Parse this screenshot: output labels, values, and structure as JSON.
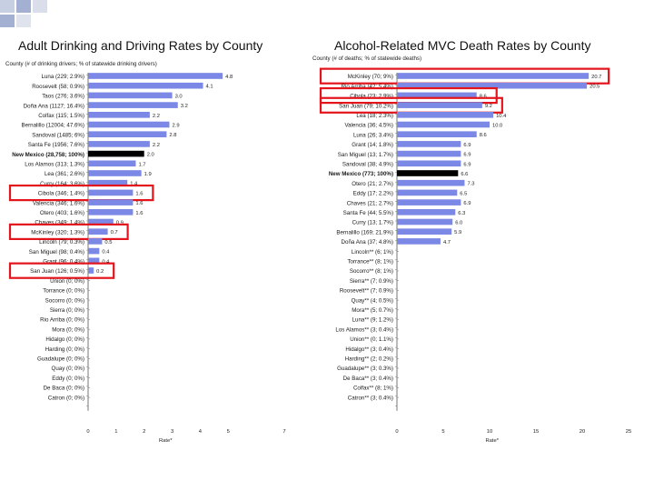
{
  "slide": {
    "title_left": "Adult Drinking and Driving Rates by County",
    "title_right": "Alcohol-Related MVC Death Rates by County",
    "accent_color": "#8ea0c8",
    "highlight_color": "#e3141c",
    "bar_color": "#7b88e6",
    "reference_bar_color": "#000000"
  },
  "chart_data": [
    {
      "type": "bar",
      "orientation": "horizontal",
      "title": "Adult Drinking and Driving Rates by County",
      "header": "County (# of drinking drivers; % of statewide drinking drivers)",
      "xlabel": "Rate*",
      "xlim": [
        0,
        7
      ],
      "xticks": [
        "0",
        "1",
        "2",
        "3",
        "4",
        "5",
        "7"
      ],
      "categories": [
        "Luna (229; 2.9%)",
        "Roosevelt (58; 0.9%)",
        "Taos (276; 3.6%)",
        "Doña Ana (1127; 16.4%)",
        "Colfax (115; 1.5%)",
        "Bernalillo (12004; 47.6%)",
        "Sandoval (1485; 6%)",
        "Santa Fe (1956; 7.6%)",
        "New Mexico (28,758; 100%)",
        "Los Alamos (313; 1.3%)",
        "Lea (361; 2.6%)",
        "Curry (164; 3.6%)",
        "Cibola (346; 1.4%)",
        "Valencia (346; 1.6%)",
        "Otero (403; 1.6%)",
        "Chaves (349; 1.4%)",
        "McKinley (320; 1.3%)",
        "Lincoln (79; 0.3%)",
        "San Miguel (98; 0.4%)",
        "Grant (96; 0.4%)",
        "San Juan (126; 0.5%)",
        "Union (0; 0%)",
        "Torrance (0; 0%)",
        "Socorro (0; 0%)",
        "Sierra (0; 0%)",
        "Rio Arriba (0; 0%)",
        "Mora (0; 0%)",
        "Hidalgo (0; 0%)",
        "Harding (0; 0%)",
        "Guadalupe (0; 0%)",
        "Quay (0; 0%)",
        "Eddy (0; 0%)",
        "De Baca (0; 0%)",
        "Catron (0; 0%)"
      ],
      "values": [
        4.8,
        4.1,
        3.0,
        3.2,
        2.2,
        2.9,
        2.8,
        2.2,
        2.0,
        1.7,
        1.9,
        1.4,
        1.6,
        1.6,
        1.6,
        0.9,
        0.7,
        0.5,
        0.4,
        0.4,
        0.2,
        0,
        0,
        0,
        0,
        0,
        0,
        0,
        0,
        0,
        0,
        0,
        0,
        0
      ],
      "value_labels": [
        "4.8",
        "4.1",
        "3.0",
        "3.2",
        "2.2",
        "2.9",
        "2.8",
        "2.2",
        "2.0",
        "1.7",
        "1.9",
        "1.4",
        "1.6",
        "1.6",
        "1.6",
        "0.9",
        "0.7",
        "0.5",
        "0.4",
        "0.4",
        "0.2",
        "",
        "",
        "",
        "",
        "",
        "",
        "",
        "",
        "",
        "",
        "",
        "",
        ""
      ],
      "reference_category": "New Mexico (28,758; 100%)",
      "highlighted": [
        "Cibola (346; 1.4%)",
        "McKinley (320; 1.3%)",
        "San Juan (126; 0.5%)"
      ]
    },
    {
      "type": "bar",
      "orientation": "horizontal",
      "title": "Alcohol-Related MVC Death Rates by County",
      "header": "County (# of deaths; % of statewide deaths)",
      "xlabel": "Rate*",
      "xlim": [
        0,
        25
      ],
      "xticks": [
        "0",
        "5",
        "10",
        "15",
        "20",
        "25"
      ],
      "categories": [
        "McKinley (70; 9%)",
        "Rio Arriba (42; 5.4%)",
        "Cibola (23; 2.9%)",
        "San Juan (79; 10.2%)",
        "Lea (18; 2.3%)",
        "Valencia (36; 4.5%)",
        "Luna (26; 3.4%)",
        "Grant (14; 1.8%)",
        "San Miguel (13; 1.7%)",
        "Sandoval (38; 4.9%)",
        "New Mexico (773; 100%)",
        "Otero (21; 2.7%)",
        "Eddy (17; 2.2%)",
        "Chaves (21; 2.7%)",
        "Santa Fe (44; 5.5%)",
        "Curry (13; 1.7%)",
        "Bernalillo (169; 21.9%)",
        "Doña Ana (37; 4.8%)",
        "Lincoln** (6; 1%)",
        "Torrance** (8; 1%)",
        "Socorro** (8; 1%)",
        "Sierra** (7; 0.9%)",
        "Roosevelt** (7; 0.9%)",
        "Quay** (4; 0.5%)",
        "Mora** (5; 0.7%)",
        "Luna** (9; 1.2%)",
        "Los Alamos** (3; 0.4%)",
        "Union** (0; 1.1%)",
        "Hidalgo** (3; 0.4%)",
        "Harding** (2; 0.2%)",
        "Guadalupe** (3; 0.3%)",
        "De Baca** (3; 0.4%)",
        "Colfax** (8; 1%)",
        "Catron** (3; 0.4%)"
      ],
      "values": [
        20.7,
        20.5,
        8.6,
        9.2,
        10.4,
        10.0,
        8.6,
        6.9,
        6.9,
        6.9,
        6.6,
        7.3,
        6.5,
        6.9,
        6.3,
        6.0,
        5.9,
        4.7,
        0,
        0,
        0,
        0,
        0,
        0,
        0,
        0,
        0,
        0,
        0,
        0,
        0,
        0,
        0,
        0
      ],
      "value_labels": [
        "20.7",
        "20.5",
        "8.6",
        "9.2",
        "10.4",
        "10.0",
        "8.6",
        "6.9",
        "6.9",
        "6.9",
        "6.6",
        "7.3",
        "6.5",
        "6.9",
        "6.3",
        "6.0",
        "5.9",
        "4.7",
        "",
        "",
        "",
        "",
        "",
        "",
        "",
        "",
        "",
        "",
        "",
        "",
        "",
        "",
        "",
        ""
      ],
      "reference_category": "New Mexico (773; 100%)",
      "highlighted": [
        "McKinley (70; 9%)",
        "Cibola (23; 2.9%)",
        "San Juan (79; 10.2%)"
      ]
    }
  ]
}
